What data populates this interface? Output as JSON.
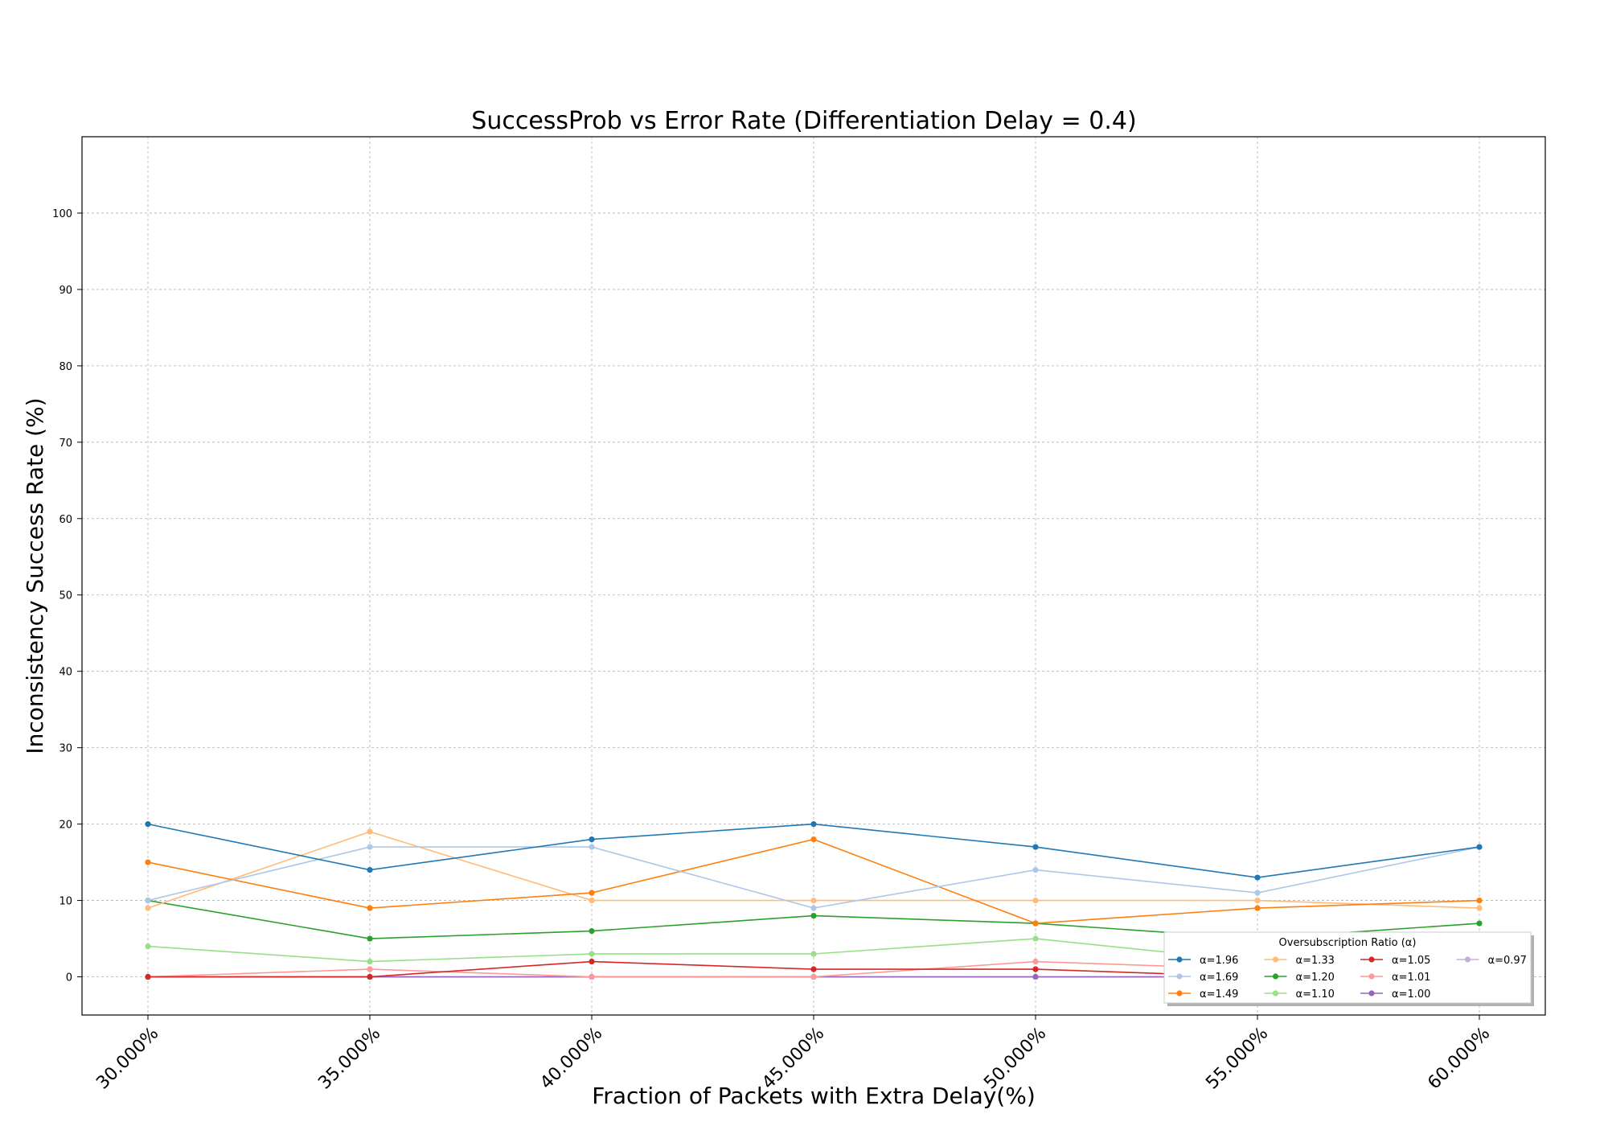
{
  "chart_data": {
    "type": "line",
    "title": "SuccessProb vs Error Rate (Differentiation Delay = 0.4)",
    "xlabel": "Fraction of Packets with Extra Delay(%)",
    "ylabel": "Inconsistency Success Rate (%)",
    "categories": [
      "30.000%",
      "35.000%",
      "40.000%",
      "45.000%",
      "50.000%",
      "55.000%",
      "60.000%"
    ],
    "ylim": [
      -5,
      110
    ],
    "yticks": [
      0,
      10,
      20,
      30,
      40,
      50,
      60,
      70,
      80,
      90,
      100
    ],
    "grid": true,
    "legend": {
      "title": "Oversubscription Ratio (α)",
      "placement": "lower-right",
      "columns": 4
    },
    "series": [
      {
        "name": "α=1.96",
        "color": "#1f77b4",
        "values": [
          20,
          14,
          18,
          20,
          17,
          13,
          17
        ]
      },
      {
        "name": "α=1.69",
        "color": "#aec7e8",
        "values": [
          10,
          17,
          17,
          9,
          14,
          11,
          17
        ]
      },
      {
        "name": "α=1.49",
        "color": "#ff7f0e",
        "values": [
          15,
          9,
          11,
          18,
          7,
          9,
          10
        ]
      },
      {
        "name": "α=1.33",
        "color": "#ffbb78",
        "values": [
          9,
          19,
          10,
          10,
          10,
          10,
          9
        ]
      },
      {
        "name": "α=1.20",
        "color": "#2ca02c",
        "values": [
          10,
          5,
          6,
          8,
          7,
          5,
          7
        ]
      },
      {
        "name": "α=1.10",
        "color": "#98df8a",
        "values": [
          4,
          2,
          3,
          3,
          5,
          2,
          2
        ]
      },
      {
        "name": "α=1.05",
        "color": "#d62728",
        "values": [
          0,
          0,
          2,
          1,
          1,
          0,
          0
        ]
      },
      {
        "name": "α=1.01",
        "color": "#ff9896",
        "values": [
          0,
          1,
          0,
          0,
          2,
          1,
          0
        ]
      },
      {
        "name": "α=1.00",
        "color": "#9467bd",
        "values": [
          0,
          0,
          0,
          0,
          0,
          0,
          0
        ]
      },
      {
        "name": "α=0.97",
        "color": "#c5b0d5",
        "values": [
          0,
          0,
          0,
          0,
          0,
          0,
          0
        ]
      }
    ]
  }
}
